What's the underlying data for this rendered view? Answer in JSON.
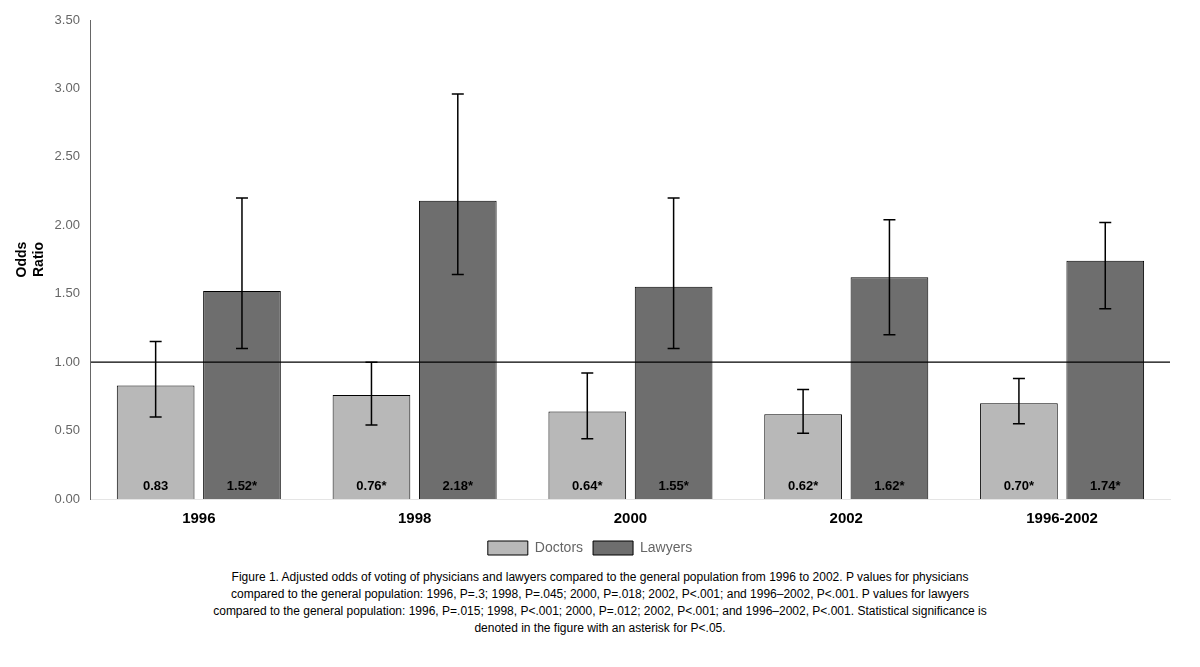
{
  "chart_data": {
    "type": "bar",
    "categories": [
      "1996",
      "1998",
      "2000",
      "2002",
      "1996-2002"
    ],
    "series": [
      {
        "name": "Doctors",
        "color": "#b8b8b8",
        "values": [
          0.83,
          0.76,
          0.64,
          0.62,
          0.7
        ],
        "value_labels": [
          "0.83",
          "0.76*",
          "0.64*",
          "0.62*",
          "0.70*"
        ],
        "errors_low": [
          0.23,
          0.22,
          0.2,
          0.14,
          0.15
        ],
        "errors_high": [
          0.32,
          0.24,
          0.28,
          0.18,
          0.18
        ]
      },
      {
        "name": "Lawyers",
        "color": "#6e6e6e",
        "values": [
          1.52,
          2.18,
          1.55,
          1.62,
          1.74
        ],
        "value_labels": [
          "1.52*",
          "2.18*",
          "1.55*",
          "1.62*",
          "1.74*"
        ],
        "errors_low": [
          0.42,
          0.54,
          0.45,
          0.42,
          0.35
        ],
        "errors_high": [
          0.68,
          0.78,
          0.65,
          0.42,
          0.28
        ]
      }
    ],
    "ylabel": [
      "Odds",
      "Ratio"
    ],
    "ylim": [
      0.0,
      3.5
    ],
    "yticks": [
      {
        "value": 0.0,
        "label": "0.00"
      },
      {
        "value": 0.5,
        "label": "0.50"
      },
      {
        "value": 1.0,
        "label": "1.00"
      },
      {
        "value": 1.5,
        "label": "1.50"
      },
      {
        "value": 2.0,
        "label": "2.00"
      },
      {
        "value": 2.5,
        "label": "2.50"
      },
      {
        "value": 3.0,
        "label": "3.00"
      },
      {
        "value": 3.5,
        "label": "3.50"
      }
    ],
    "reference_line": 1.0,
    "data_labels": true,
    "grid": false,
    "legend": "bottom",
    "caption": [
      "Figure 1.  Adjusted odds of voting of physicians and lawyers compared to the general population from 1996 to 2002. P values for physicians",
      "compared to the general population: 1996, P=.3; 1998, P=.045; 2000, P=.018; 2002, P<.001; and 1996–2002, P<.001. P values for lawyers",
      "compared to the general population: 1996, P=.015; 1998, P<.001; 2000, P=.012; 2002, P<.001; and 1996–2002, P<.001. Statistical significance is",
      "denoted in the figure with an asterisk for P<.05."
    ]
  }
}
